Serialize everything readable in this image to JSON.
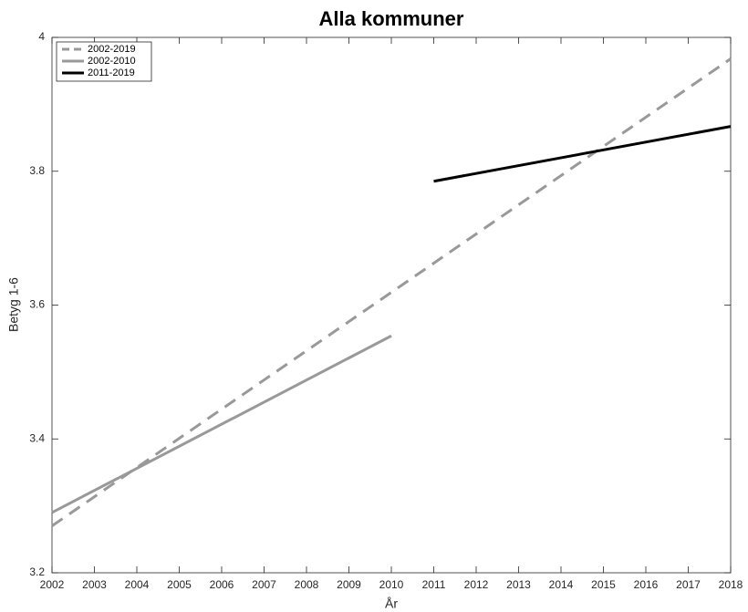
{
  "chart_data": {
    "type": "line",
    "title": "Alla kommuner",
    "xlabel": "År",
    "ylabel": "Betyg 1-6",
    "xlim": [
      2002,
      2018
    ],
    "xticks": [
      2002,
      2003,
      2004,
      2005,
      2006,
      2007,
      2008,
      2009,
      2010,
      2011,
      2012,
      2013,
      2014,
      2015,
      2016,
      2017,
      2018
    ],
    "ylim": [
      3.2,
      4
    ],
    "yticks": [
      3.2,
      3.4,
      3.6,
      3.8,
      4
    ],
    "legend": "upper left",
    "series": [
      {
        "name": "2002-2019",
        "color": "#999999",
        "dashed": true,
        "x": [
          2002,
          2018
        ],
        "values": [
          3.27,
          3.968
        ]
      },
      {
        "name": "2002-2010",
        "color": "#999999",
        "dashed": false,
        "x": [
          2002,
          2010
        ],
        "values": [
          3.29,
          3.554
        ]
      },
      {
        "name": "2011-2019",
        "color": "#000000",
        "dashed": false,
        "x": [
          2011,
          2018
        ],
        "values": [
          3.785,
          3.867
        ]
      }
    ]
  }
}
